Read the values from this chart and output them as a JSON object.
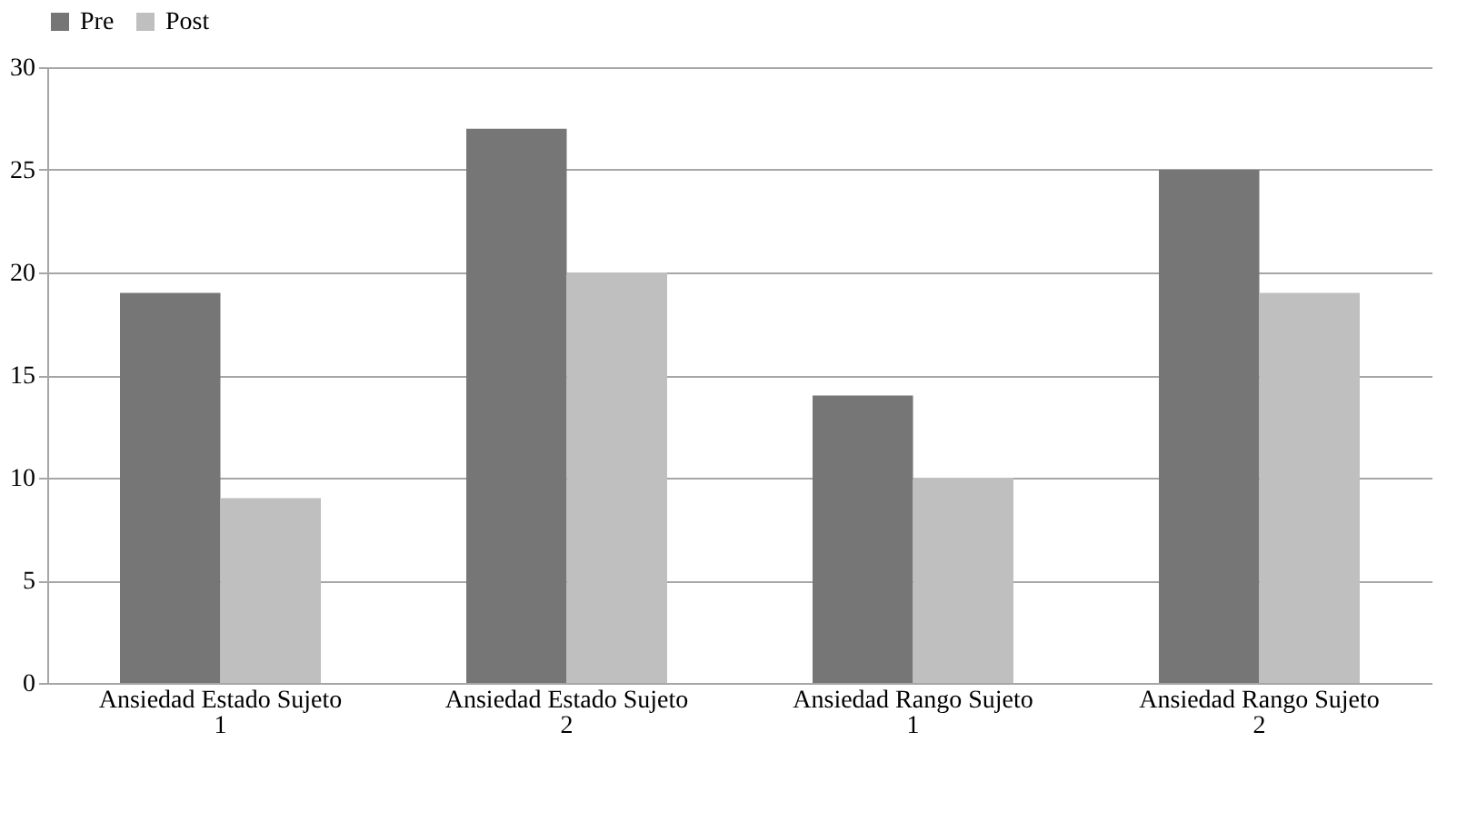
{
  "chart_data": {
    "type": "bar",
    "categories": [
      "Ansiedad Estado Sujeto 1",
      "Ansiedad Estado Sujeto 2",
      "Ansiedad Rango Sujeto 1",
      "Ansiedad Rango Sujeto 2"
    ],
    "series": [
      {
        "name": "Pre",
        "color": "#767676",
        "values": [
          19,
          27,
          14,
          25
        ]
      },
      {
        "name": "Post",
        "color": "#bfbfbf",
        "values": [
          9,
          20,
          10,
          19
        ]
      }
    ],
    "ylim": [
      0,
      30
    ],
    "yticks": [
      0,
      5,
      10,
      15,
      20,
      25,
      30
    ],
    "grid": "y",
    "legend": "top"
  }
}
